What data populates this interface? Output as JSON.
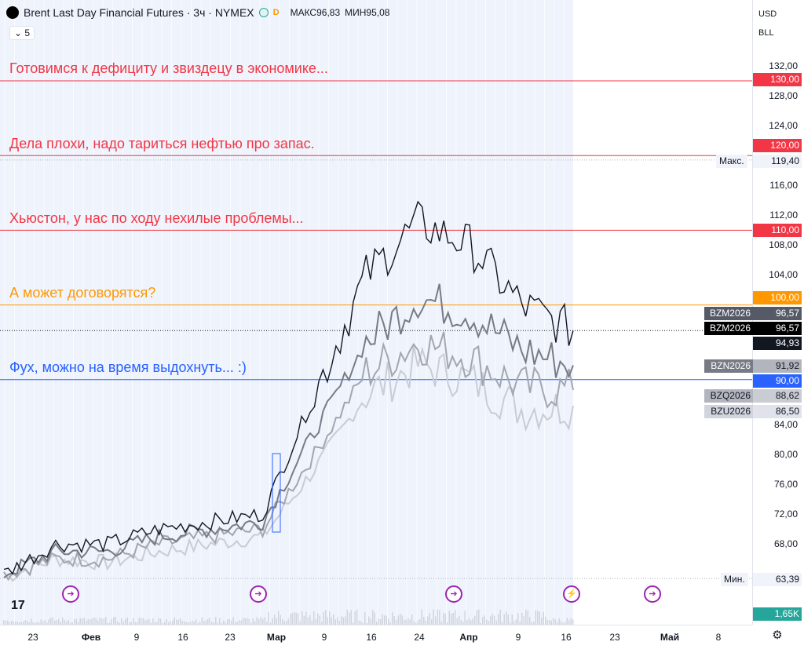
{
  "header": {
    "title": "Brent Last Day Financial Futures · 3ч · NYMEX",
    "badge": "D",
    "high_label": "МАКС96,83",
    "low_label": "МИН95,08",
    "indicator_count": "5"
  },
  "axis_header": {
    "currency": "USD",
    "unit": "BLL"
  },
  "price_ticks": [
    "132,00",
    "128,00",
    "124,00",
    "116,00",
    "112,00",
    "108,00",
    "104,00",
    "84,00",
    "80,00",
    "76,00",
    "72,00",
    "68,00"
  ],
  "time_ticks": [
    {
      "label": "23",
      "bold": false
    },
    {
      "label": "Фев",
      "bold": true
    },
    {
      "label": "9",
      "bold": false
    },
    {
      "label": "16",
      "bold": false
    },
    {
      "label": "23",
      "bold": false
    },
    {
      "label": "Мар",
      "bold": true
    },
    {
      "label": "9",
      "bold": false
    },
    {
      "label": "16",
      "bold": false
    },
    {
      "label": "24",
      "bold": false
    },
    {
      "label": "Апр",
      "bold": true
    },
    {
      "label": "9",
      "bold": false
    },
    {
      "label": "16",
      "bold": false
    },
    {
      "label": "23",
      "bold": false
    },
    {
      "label": "Май",
      "bold": true
    },
    {
      "label": "8",
      "bold": false
    }
  ],
  "levels": [
    {
      "price": "130,00",
      "text": "Готовимся к дефициту и звиздецу в экономике...",
      "color": "#f23645"
    },
    {
      "price": "120,00",
      "text": "Дела плохи, надо тариться нефтью про запас.",
      "color": "#f23645"
    },
    {
      "price": "110,00",
      "text": "Хьюстон, у нас по ходу нехилые проблемы...",
      "color": "#f23645"
    },
    {
      "price": "100,00",
      "text": "А может договорятся?",
      "color": "#ff9800"
    },
    {
      "price": "90,00",
      "text": "Фух, можно на время выдохнуть... :)",
      "color": "#2962ff"
    }
  ],
  "max_marker": {
    "label": "Макс.",
    "value": "119,40"
  },
  "min_marker": {
    "label": "Мин.",
    "value": "63,39"
  },
  "series_tags": [
    {
      "name": "BZM2026",
      "value": "96,57",
      "style": "dark"
    },
    {
      "name": "BZM2026",
      "value": "96,57",
      "style": "black"
    },
    {
      "name": "",
      "value": "94,93",
      "style": "black"
    },
    {
      "name": "BZN2026",
      "value": "91,92",
      "style": "gray"
    },
    {
      "name": "BZQ2026",
      "value": "88,62",
      "style": "lightgray"
    },
    {
      "name": "BZU2026",
      "value": "86,50",
      "style": "lightgray"
    }
  ],
  "volume_value": "1,65K",
  "colors": {
    "up": "#131722",
    "session": "#eef3fc",
    "event": "#9c27b0",
    "accent": "#2962ff"
  },
  "icons": [
    "logo-icon",
    "settings-icon",
    "tradingview-logo-icon",
    "event-icon"
  ],
  "chart_data": {
    "type": "line",
    "title": "Brent Last Day Financial Futures · 3ч · NYMEX",
    "xlabel": "",
    "ylabel": "",
    "ylim": [
      60,
      135
    ],
    "x": [
      "23 янв",
      "Фев",
      "9 фев",
      "16 фев",
      "23 фев",
      "Мар",
      "9 мар",
      "16 мар",
      "24 мар",
      "Апр",
      "9 апр",
      "16 апр"
    ],
    "series": [
      {
        "name": "BZM2026",
        "values": [
          64,
          68,
          68,
          70,
          71,
          72,
          88,
          104,
          111,
          108,
          100,
          96.57
        ]
      },
      {
        "name": "BZN2026",
        "values": [
          64,
          67,
          67,
          69,
          70,
          71,
          83,
          95,
          101,
          99,
          94,
          91.92
        ]
      },
      {
        "name": "BZQ2026",
        "values": [
          64,
          66,
          66,
          68,
          69,
          70,
          80,
          91,
          95,
          93,
          89,
          88.62
        ]
      },
      {
        "name": "BZU2026",
        "values": [
          63.5,
          66,
          65.5,
          67,
          68,
          69,
          78,
          88,
          92,
          90,
          86,
          86.5
        ]
      }
    ]
  }
}
